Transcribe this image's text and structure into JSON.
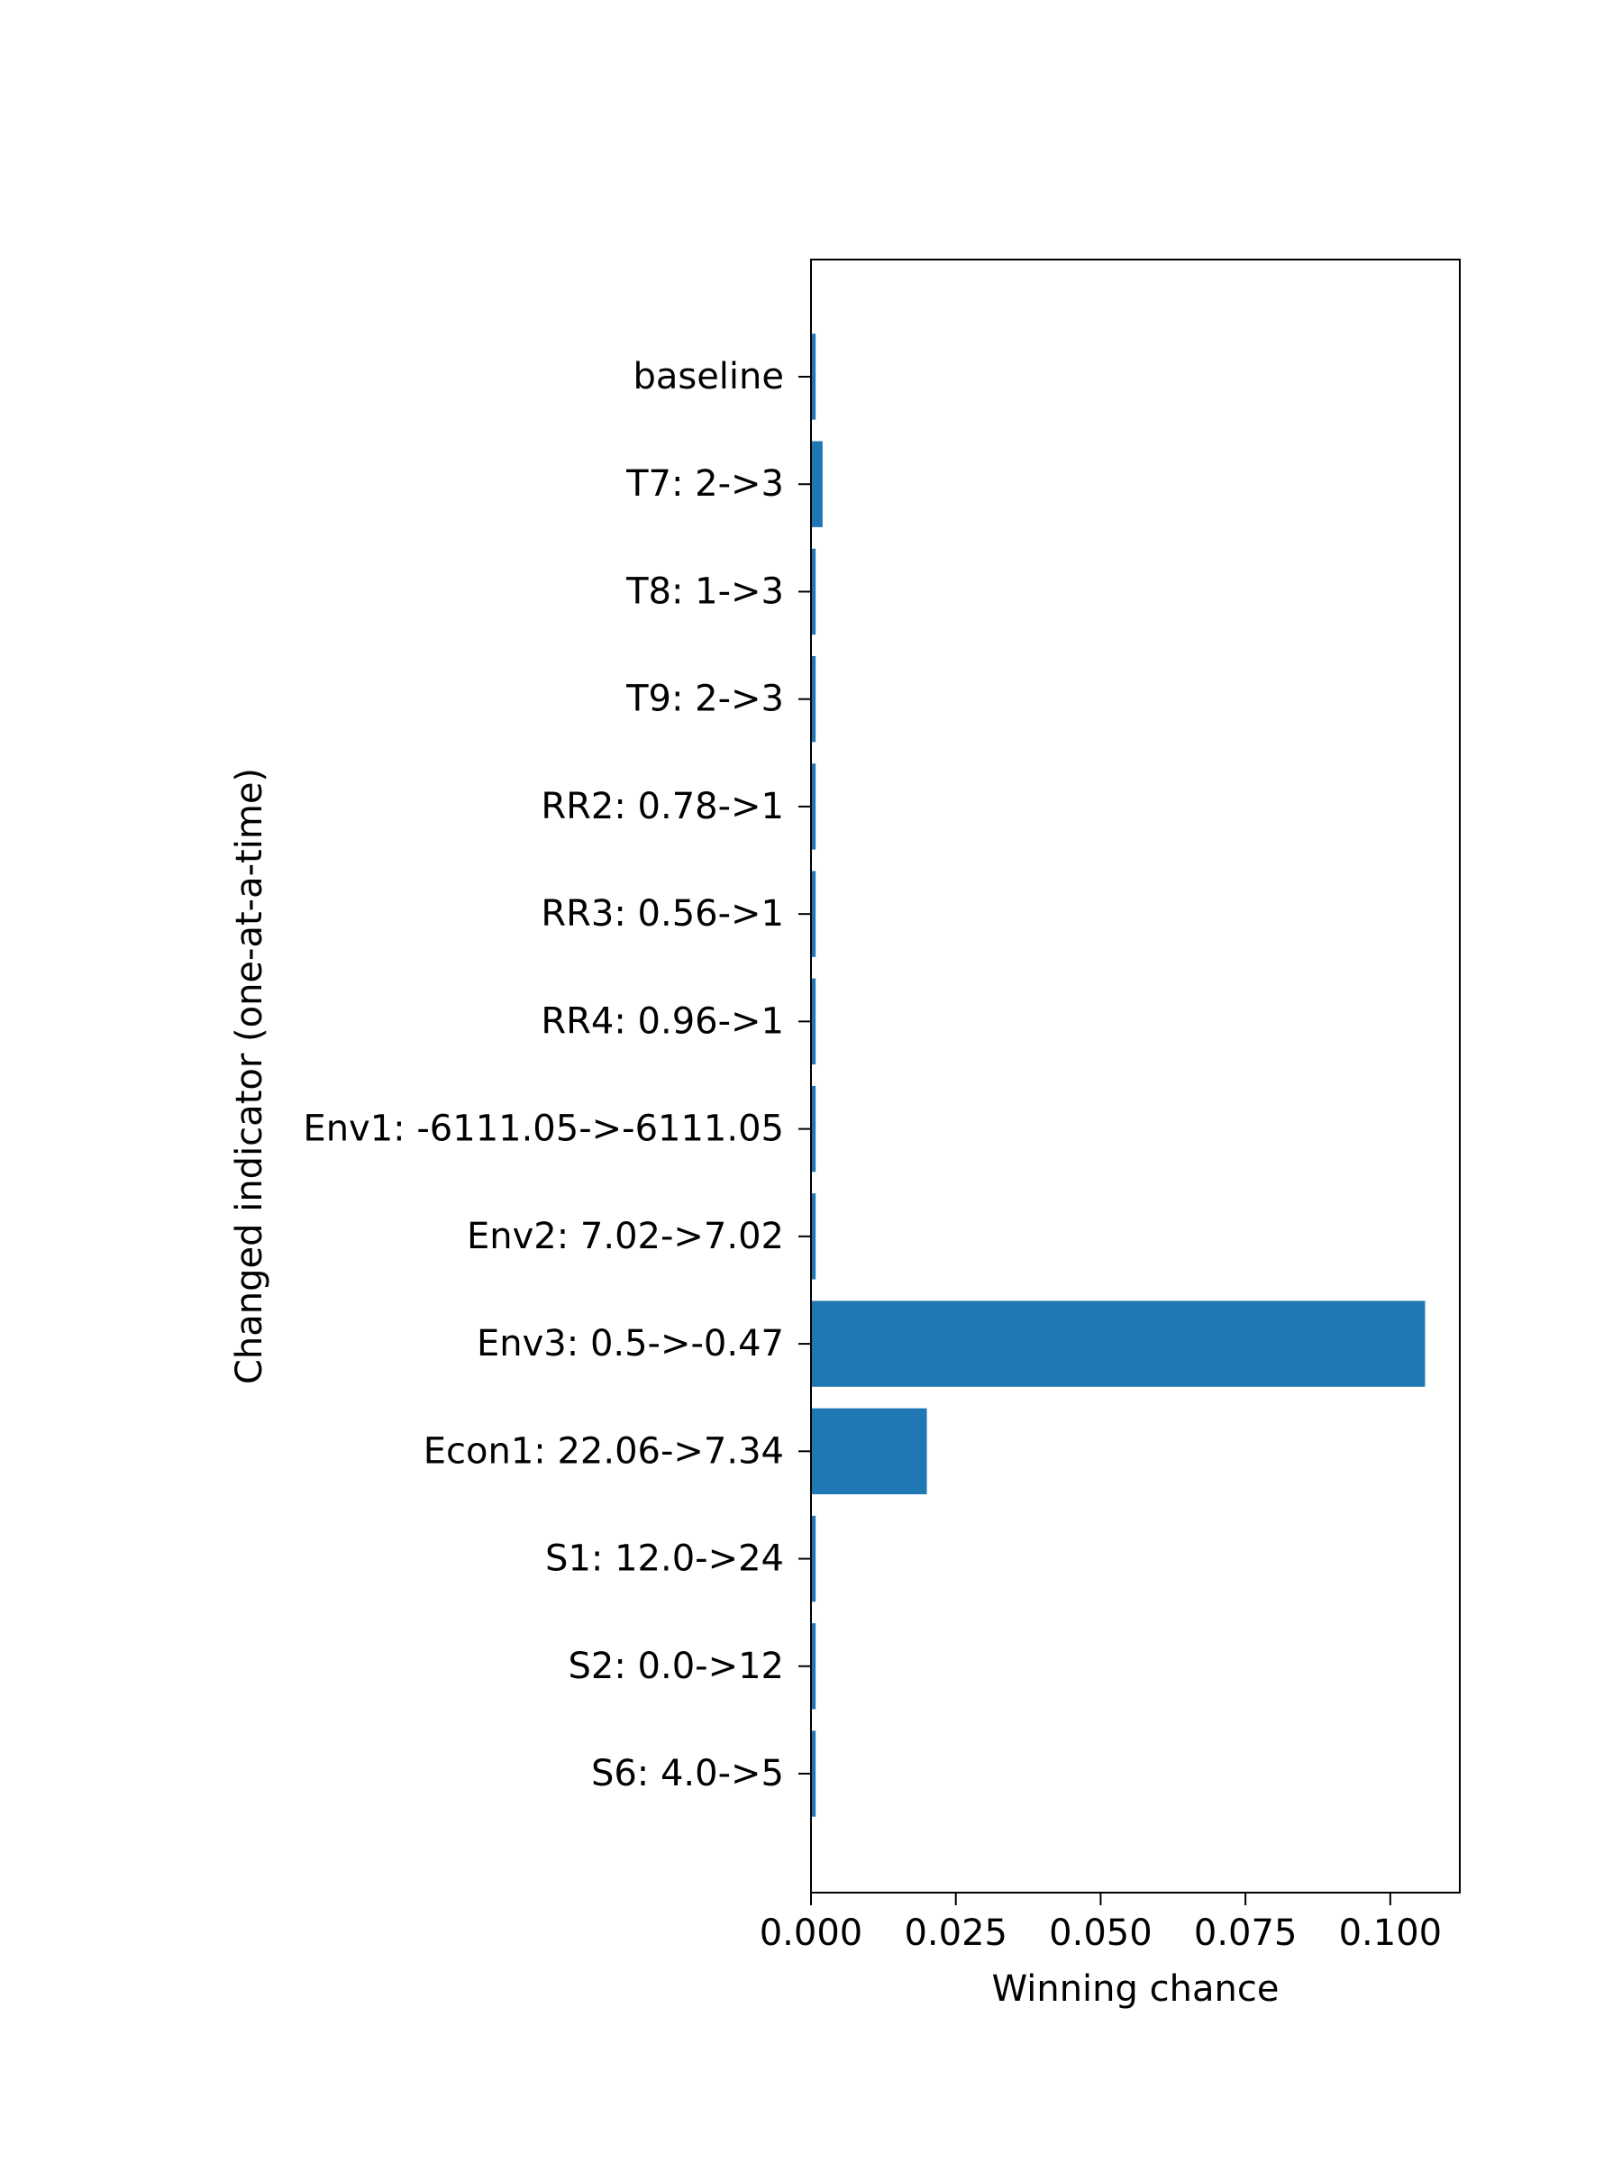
{
  "chart_data": {
    "type": "bar",
    "orientation": "horizontal",
    "title": "",
    "xlabel": "Winning chance",
    "ylabel": "Changed indicator (one-at-a-time)",
    "xlim": [
      0,
      0.112
    ],
    "xticks": [
      0.0,
      0.025,
      0.05,
      0.075,
      0.1
    ],
    "xtick_labels": [
      "0.000",
      "0.025",
      "0.050",
      "0.075",
      "0.100"
    ],
    "grid": false,
    "legend": "none",
    "bar_color": "#1f77b4",
    "categories": [
      "baseline",
      "T7: 2->3",
      "T8: 1->3",
      "T9: 2->3",
      "RR2: 0.78->1",
      "RR3: 0.56->1",
      "RR4: 0.96->1",
      "Env1: -6111.05->-6111.05",
      "Env2: 7.02->7.02",
      "Env3: 0.5->-0.47",
      "Econ1: 22.06->7.34",
      "S1: 12.0->24",
      "S2: 0.0->12",
      "S6: 4.0->5"
    ],
    "values": [
      0.0008,
      0.002,
      0.0008,
      0.0008,
      0.0008,
      0.0008,
      0.0008,
      0.0008,
      0.0008,
      0.106,
      0.02,
      0.0008,
      0.0008,
      0.0008
    ]
  }
}
